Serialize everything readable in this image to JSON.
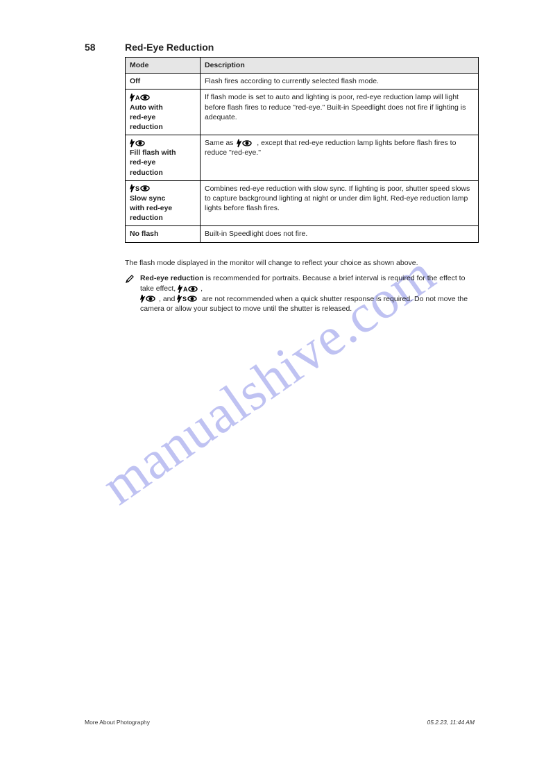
{
  "watermark": {
    "text": "manualshive.com",
    "color": "#b5b8f0"
  },
  "page_number": "58",
  "section_title": "Red-Eye Reduction",
  "table": {
    "columns": [
      "Mode",
      "Description"
    ],
    "rows": [
      {
        "icon": "none",
        "mode": "Off",
        "desc": "Flash fires according to currently selected flash mode."
      },
      {
        "icon": "auto_eye",
        "mode": "Auto with\nred-eye\nreduction",
        "desc": "If flash mode is set to auto and lighting is poor, red-eye reduction lamp will light before flash fires to reduce \"red-eye.\" Built-in Speedlight does not fire if lighting is adequate."
      },
      {
        "icon": "fill_eye",
        "mode": "Fill flash with\nred-eye\nreduction",
        "desc_pre": "Same as",
        "desc_inline_icon": "fill_eye",
        "desc_post": ", except that red-eye reduction lamp lights before flash fires to reduce \"red-eye.\""
      },
      {
        "icon": "slow_eye",
        "mode": "Slow sync\nwith red-eye\nreduction",
        "desc": "Combines red-eye reduction with slow sync. If lighting is poor, shutter speed slows to capture background lighting at night or under dim light. Red-eye reduction lamp lights before flash fires."
      },
      {
        "icon": "none",
        "mode": "No flash",
        "desc": "Built-in Speedlight does not fire."
      }
    ]
  },
  "afterText": {
    "p": "The flash mode displayed in the monitor will change to reflect your choice as shown above.",
    "tipLabel": "Red-eye reduction",
    "tipPre": "is recommended for portraits. Because a brief interval is required for the effect to take effect, ",
    "tipMid": " and ",
    "tipPost": " are not recommended when a quick shutter response is required. Do not move the camera or allow your subject to move until the shutter is released."
  },
  "footer": {
    "left": "More About Photography",
    "right": "05.2.23, 11:44 AM"
  },
  "icons": {
    "stroke": "#000000"
  }
}
